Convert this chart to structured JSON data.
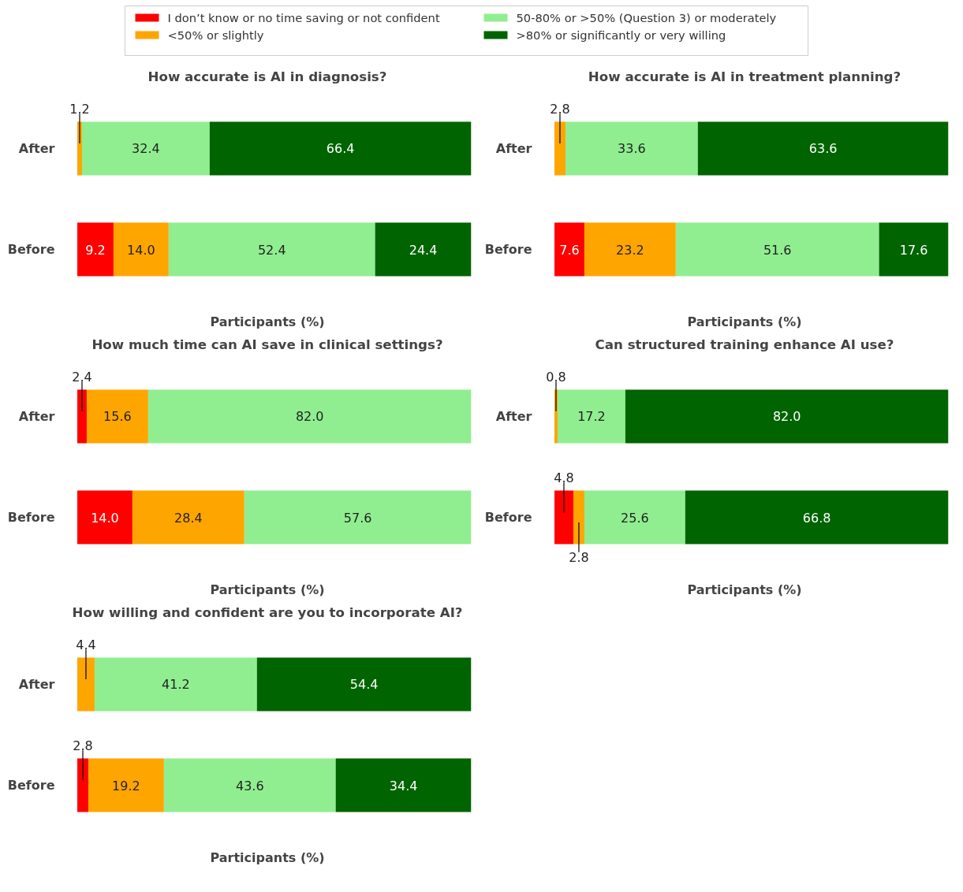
{
  "chart_data": [
    {
      "type": "bar",
      "orientation": "horizontal",
      "stacked": true,
      "title": "How accurate is AI in diagnosis?",
      "xlabel": "Participants (%)",
      "categories": [
        "After",
        "Before"
      ],
      "tick_labels": "y",
      "legend": "top",
      "series": [
        {
          "name": "I don’t know or no time saving or not confident",
          "color": "#ff0000",
          "values": [
            null,
            9.2
          ],
          "value_labels": [
            null,
            "9.2"
          ]
        },
        {
          "name": "<50% or slightly",
          "color": "#ffa500",
          "values": [
            1.2,
            14.0
          ],
          "value_labels": [
            "1.2",
            "14.0"
          ]
        },
        {
          "name": "50-80% or >50% (Question 3) or moderately",
          "color": "#90ee90",
          "values": [
            32.4,
            52.4
          ],
          "value_labels": [
            "32.4",
            "52.4"
          ]
        },
        {
          "name": ">80% or significantly or very willing",
          "color": "#006400",
          "values": [
            66.4,
            24.4
          ],
          "value_labels": [
            "66.4",
            "24.4"
          ]
        }
      ]
    },
    {
      "type": "bar",
      "orientation": "horizontal",
      "stacked": true,
      "title": "How accurate is AI in treatment planning?",
      "xlabel": "Participants (%)",
      "categories": [
        "After",
        "Before"
      ],
      "tick_labels": "y",
      "series": [
        {
          "color": "#ff0000",
          "values": [
            null,
            7.6
          ],
          "value_labels": [
            null,
            "7.6"
          ]
        },
        {
          "color": "#ffa500",
          "values": [
            2.8,
            23.2
          ],
          "value_labels": [
            "2.8",
            "23.2"
          ]
        },
        {
          "color": "#90ee90",
          "values": [
            33.6,
            51.6
          ],
          "value_labels": [
            "33.6",
            "51.6"
          ]
        },
        {
          "color": "#006400",
          "values": [
            63.6,
            17.6
          ],
          "value_labels": [
            "63.6",
            "17.6"
          ]
        }
      ]
    },
    {
      "type": "bar",
      "orientation": "horizontal",
      "stacked": true,
      "title": "How much time can AI save in clinical settings?",
      "xlabel": "Participants (%)",
      "categories": [
        "After",
        "Before"
      ],
      "tick_labels": "y",
      "series": [
        {
          "color": "#ff0000",
          "values": [
            2.4,
            14.0
          ],
          "value_labels": [
            "2.4",
            "14.0"
          ]
        },
        {
          "color": "#ffa500",
          "values": [
            15.6,
            28.4
          ],
          "value_labels": [
            "15.6",
            "28.4"
          ]
        },
        {
          "color": "#90ee90",
          "values": [
            82.0,
            57.6
          ],
          "value_labels": [
            "82.0",
            "57.6"
          ]
        }
      ]
    },
    {
      "type": "bar",
      "orientation": "horizontal",
      "stacked": true,
      "title": "Can structured training enhance AI use?",
      "xlabel": "Participants (%)",
      "categories": [
        "After",
        "Before"
      ],
      "tick_labels": "y",
      "series": [
        {
          "color": "#ff0000",
          "values": [
            null,
            4.8
          ],
          "value_labels": [
            null,
            "4.8"
          ]
        },
        {
          "color": "#ffa500",
          "values": [
            0.8,
            2.8
          ],
          "value_labels": [
            "0.8",
            "2.8"
          ]
        },
        {
          "color": "#90ee90",
          "values": [
            17.2,
            25.6
          ],
          "value_labels": [
            "17.2",
            "25.6"
          ]
        },
        {
          "color": "#006400",
          "values": [
            82.0,
            66.8
          ],
          "value_labels": [
            "82.0",
            "66.8"
          ]
        }
      ]
    },
    {
      "type": "bar",
      "orientation": "horizontal",
      "stacked": true,
      "title": "How willing and confident are you to incorporate AI?",
      "xlabel": "Participants (%)",
      "categories": [
        "After",
        "Before"
      ],
      "tick_labels": "y",
      "series": [
        {
          "color": "#ff0000",
          "values": [
            null,
            2.8
          ],
          "value_labels": [
            null,
            "2.8"
          ]
        },
        {
          "color": "#ffa500",
          "values": [
            4.4,
            19.2
          ],
          "value_labels": [
            "4.4",
            "19.2"
          ]
        },
        {
          "color": "#90ee90",
          "values": [
            41.2,
            43.6
          ],
          "value_labels": [
            "41.2",
            "43.6"
          ]
        },
        {
          "color": "#006400",
          "values": [
            54.4,
            34.4
          ],
          "value_labels": [
            "54.4",
            "34.4"
          ]
        }
      ]
    }
  ]
}
